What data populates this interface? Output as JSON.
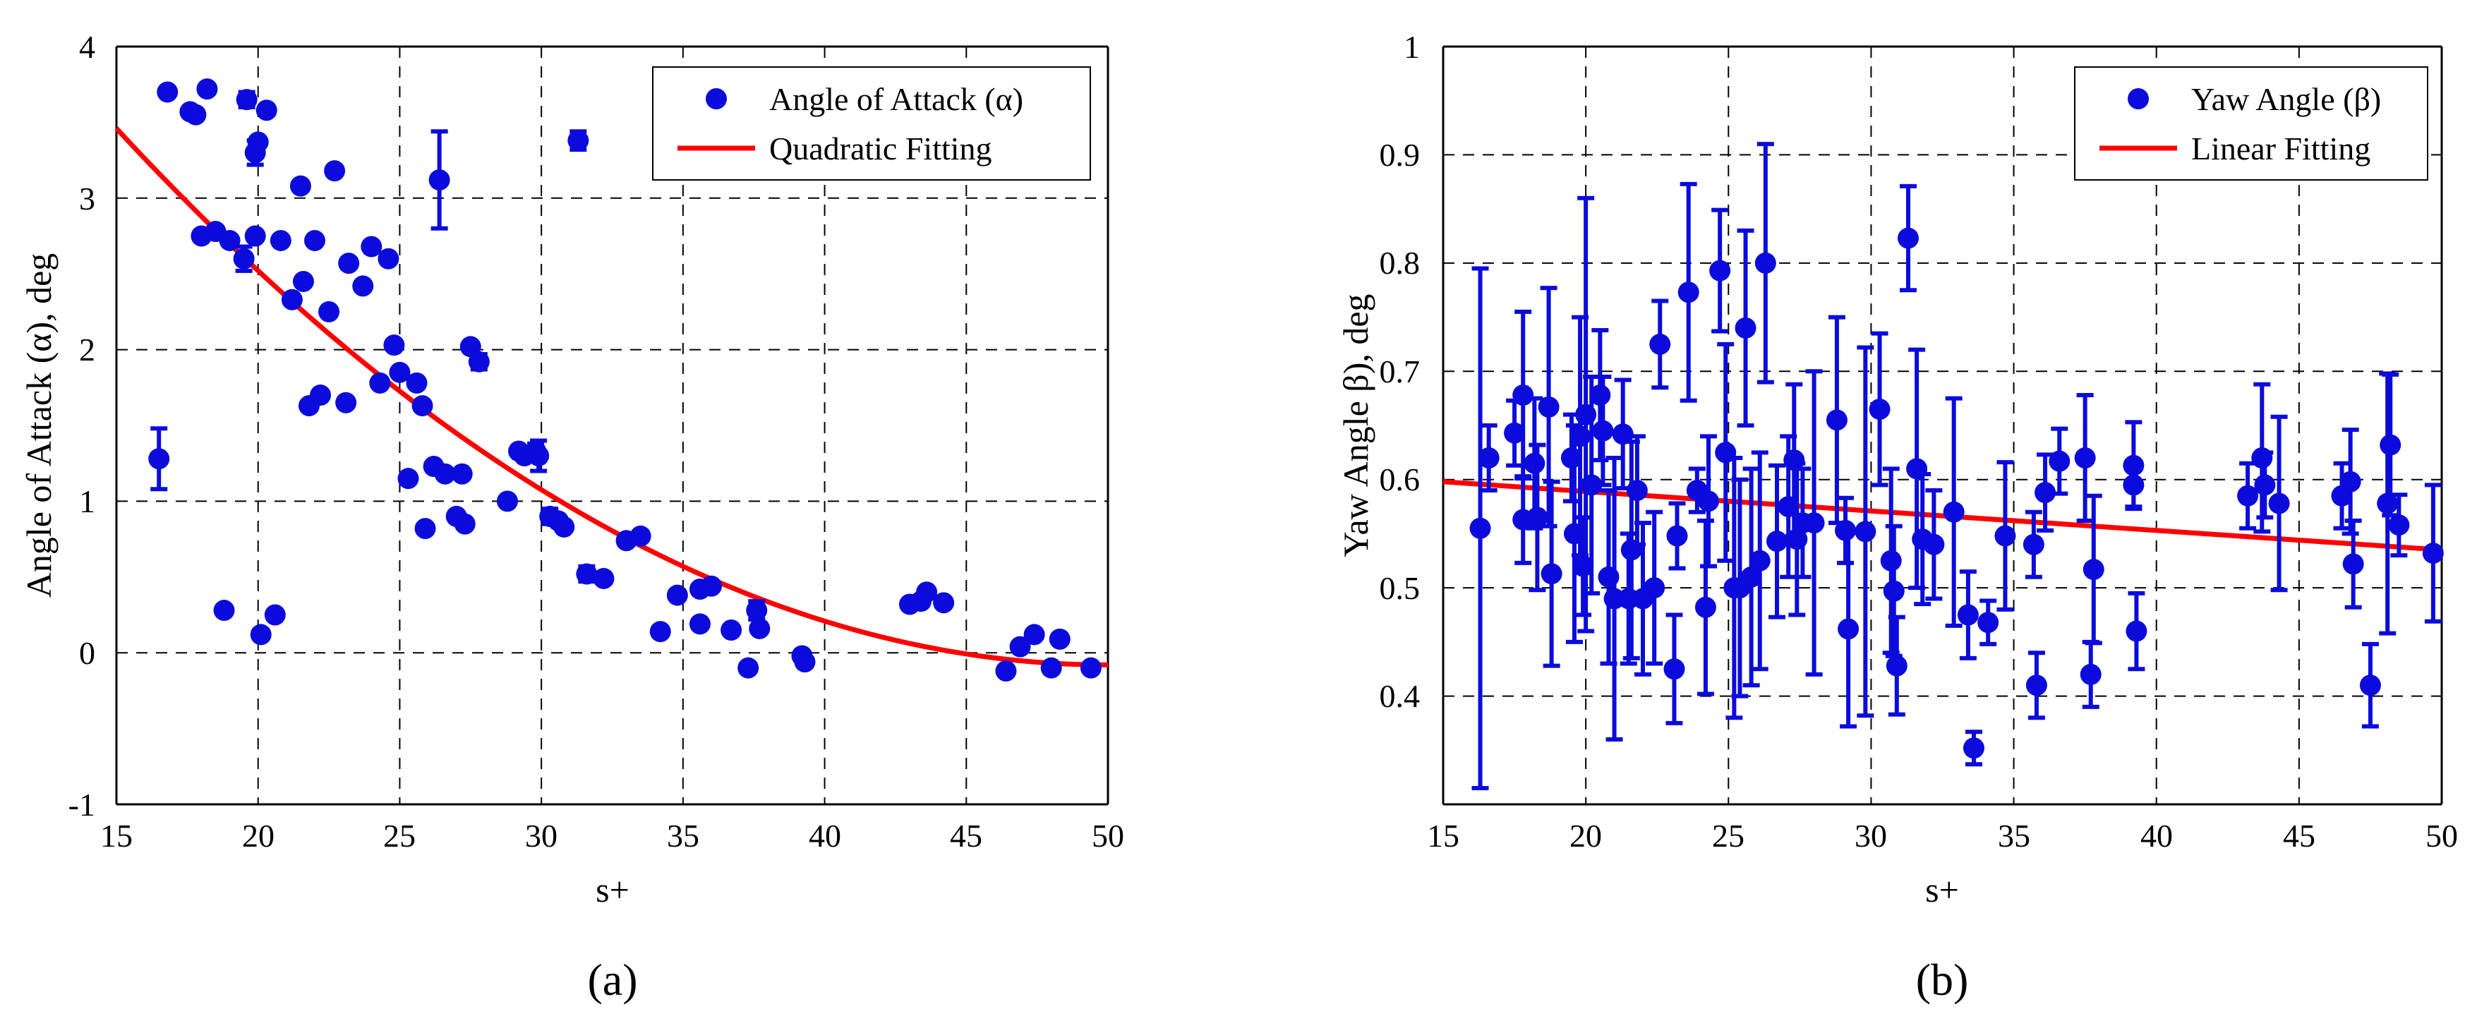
{
  "chart_data": [
    {
      "type": "scatter",
      "panel_label": "(a)",
      "xlabel": "s+",
      "ylabel": "Angle of Attack (α), deg",
      "xlim": [
        15,
        50
      ],
      "ylim": [
        -1,
        4
      ],
      "xticks": [
        "15",
        "20",
        "25",
        "30",
        "35",
        "40",
        "45",
        "50"
      ],
      "yticks": [
        "-1",
        "0",
        "1",
        "2",
        "3",
        "4"
      ],
      "grid": true,
      "legend_position": "top-right",
      "legend": [
        "Angle of Attack (α)",
        "Quadratic Fitting"
      ],
      "colors": {
        "points": "#0b0bdc",
        "fit": "#ff0000"
      },
      "series": [
        {
          "name": "Angle of Attack (α)",
          "points": [
            {
              "x": 16.5,
              "y": 1.28,
              "err": 0.2
            },
            {
              "x": 16.8,
              "y": 3.7,
              "err": 0
            },
            {
              "x": 17.6,
              "y": 3.57,
              "err": 0
            },
            {
              "x": 17.8,
              "y": 3.55,
              "err": 0
            },
            {
              "x": 18.0,
              "y": 2.75,
              "err": 0
            },
            {
              "x": 18.2,
              "y": 3.72,
              "err": 0
            },
            {
              "x": 18.5,
              "y": 2.78,
              "err": 0
            },
            {
              "x": 18.8,
              "y": 0.28,
              "err": 0
            },
            {
              "x": 19.0,
              "y": 2.72,
              "err": 0
            },
            {
              "x": 19.5,
              "y": 2.6,
              "err": 0.08
            },
            {
              "x": 19.6,
              "y": 3.65,
              "err": 0.05
            },
            {
              "x": 19.9,
              "y": 3.3,
              "err": 0.08
            },
            {
              "x": 20.0,
              "y": 3.37,
              "err": 0
            },
            {
              "x": 19.9,
              "y": 2.75,
              "err": 0
            },
            {
              "x": 20.1,
              "y": 0.12,
              "err": 0
            },
            {
              "x": 20.3,
              "y": 3.58,
              "err": 0
            },
            {
              "x": 20.6,
              "y": 0.25,
              "err": 0
            },
            {
              "x": 20.8,
              "y": 2.72,
              "err": 0
            },
            {
              "x": 21.2,
              "y": 2.33,
              "err": 0
            },
            {
              "x": 21.5,
              "y": 3.08,
              "err": 0
            },
            {
              "x": 21.6,
              "y": 2.45,
              "err": 0
            },
            {
              "x": 21.8,
              "y": 1.63,
              "err": 0
            },
            {
              "x": 22.0,
              "y": 2.72,
              "err": 0
            },
            {
              "x": 22.2,
              "y": 1.7,
              "err": 0
            },
            {
              "x": 22.5,
              "y": 2.25,
              "err": 0
            },
            {
              "x": 22.7,
              "y": 3.18,
              "err": 0
            },
            {
              "x": 23.1,
              "y": 1.65,
              "err": 0
            },
            {
              "x": 23.2,
              "y": 2.57,
              "err": 0
            },
            {
              "x": 23.7,
              "y": 2.42,
              "err": 0
            },
            {
              "x": 24.0,
              "y": 2.68,
              "err": 0
            },
            {
              "x": 24.3,
              "y": 1.78,
              "err": 0
            },
            {
              "x": 24.6,
              "y": 2.6,
              "err": 0
            },
            {
              "x": 24.8,
              "y": 2.03,
              "err": 0
            },
            {
              "x": 25.0,
              "y": 1.85,
              "err": 0
            },
            {
              "x": 25.3,
              "y": 1.15,
              "err": 0
            },
            {
              "x": 25.6,
              "y": 1.78,
              "err": 0
            },
            {
              "x": 25.8,
              "y": 1.63,
              "err": 0
            },
            {
              "x": 25.9,
              "y": 0.82,
              "err": 0
            },
            {
              "x": 26.2,
              "y": 1.23,
              "err": 0
            },
            {
              "x": 26.4,
              "y": 3.12,
              "err": 0.32
            },
            {
              "x": 26.6,
              "y": 1.18,
              "err": 0
            },
            {
              "x": 27.0,
              "y": 0.9,
              "err": 0
            },
            {
              "x": 27.2,
              "y": 1.18,
              "err": 0
            },
            {
              "x": 27.3,
              "y": 0.85,
              "err": 0
            },
            {
              "x": 27.5,
              "y": 2.02,
              "err": 0
            },
            {
              "x": 27.8,
              "y": 1.92,
              "err": 0.05
            },
            {
              "x": 28.8,
              "y": 1.0,
              "err": 0
            },
            {
              "x": 29.2,
              "y": 1.33,
              "err": 0
            },
            {
              "x": 29.4,
              "y": 1.3,
              "err": 0
            },
            {
              "x": 29.8,
              "y": 1.33,
              "err": 0.05
            },
            {
              "x": 29.9,
              "y": 1.3,
              "err": 0.1
            },
            {
              "x": 30.3,
              "y": 0.9,
              "err": 0.05
            },
            {
              "x": 30.6,
              "y": 0.87,
              "err": 0
            },
            {
              "x": 30.8,
              "y": 0.83,
              "err": 0
            },
            {
              "x": 31.3,
              "y": 3.38,
              "err": 0.06
            },
            {
              "x": 31.6,
              "y": 0.52,
              "err": 0.05
            },
            {
              "x": 32.2,
              "y": 0.49,
              "err": 0
            },
            {
              "x": 33.0,
              "y": 0.74,
              "err": 0
            },
            {
              "x": 33.5,
              "y": 0.77,
              "err": 0.03
            },
            {
              "x": 34.2,
              "y": 0.14,
              "err": 0
            },
            {
              "x": 34.8,
              "y": 0.38,
              "err": 0
            },
            {
              "x": 35.6,
              "y": 0.42,
              "err": 0
            },
            {
              "x": 35.6,
              "y": 0.19,
              "err": 0
            },
            {
              "x": 36.0,
              "y": 0.44,
              "err": 0
            },
            {
              "x": 36.7,
              "y": 0.15,
              "err": 0
            },
            {
              "x": 37.3,
              "y": -0.1,
              "err": 0.03
            },
            {
              "x": 37.6,
              "y": 0.28,
              "err": 0.06
            },
            {
              "x": 37.7,
              "y": 0.16,
              "err": 0
            },
            {
              "x": 39.2,
              "y": -0.02,
              "err": 0
            },
            {
              "x": 39.3,
              "y": -0.06,
              "err": 0
            },
            {
              "x": 43.0,
              "y": 0.32,
              "err": 0
            },
            {
              "x": 43.4,
              "y": 0.34,
              "err": 0
            },
            {
              "x": 43.6,
              "y": 0.4,
              "err": 0
            },
            {
              "x": 44.2,
              "y": 0.33,
              "err": 0
            },
            {
              "x": 46.4,
              "y": -0.12,
              "err": 0
            },
            {
              "x": 46.9,
              "y": 0.04,
              "err": 0
            },
            {
              "x": 47.4,
              "y": 0.12,
              "err": 0
            },
            {
              "x": 48.0,
              "y": -0.1,
              "err": 0
            },
            {
              "x": 48.3,
              "y": 0.09,
              "err": 0
            },
            {
              "x": 49.4,
              "y": -0.1,
              "err": 0
            }
          ]
        },
        {
          "name": "Quadratic Fitting",
          "fit": {
            "kind": "quadratic",
            "vertex_x": 50,
            "vertex_y": -0.08,
            "a": 0.00289,
            "x_from": 15,
            "x_to": 50
          }
        }
      ]
    },
    {
      "type": "scatter",
      "panel_label": "(b)",
      "xlabel": "s+",
      "ylabel": "Yaw Angle β), deg",
      "xlim": [
        15,
        50
      ],
      "ylim": [
        0.3,
        1
      ],
      "xticks": [
        "15",
        "20",
        "25",
        "30",
        "35",
        "40",
        "45",
        "50"
      ],
      "yticks": [
        "0.4",
        "0.5",
        "0.6",
        "0.7",
        "0.8",
        "0.9",
        "1"
      ],
      "grid": true,
      "legend_position": "top-right",
      "legend": [
        "Yaw Angle (β)",
        "Linear Fitting"
      ],
      "colors": {
        "points": "#0b0bdc",
        "fit": "#ff0000"
      },
      "series": [
        {
          "name": "Yaw Angle (β)",
          "points": [
            {
              "x": 16.3,
              "y": 0.555,
              "err": 0.24
            },
            {
              "x": 16.6,
              "y": 0.62,
              "err": 0.03
            },
            {
              "x": 17.5,
              "y": 0.643,
              "err": 0.03
            },
            {
              "x": 17.8,
              "y": 0.678,
              "err": 0.077
            },
            {
              "x": 17.8,
              "y": 0.563,
              "err": 0.04
            },
            {
              "x": 18.2,
              "y": 0.615,
              "err": 0.06
            },
            {
              "x": 18.3,
              "y": 0.565,
              "err": 0.067
            },
            {
              "x": 18.7,
              "y": 0.667,
              "err": 0.11
            },
            {
              "x": 18.8,
              "y": 0.513,
              "err": 0.085
            },
            {
              "x": 19.5,
              "y": 0.62,
              "err": 0.04
            },
            {
              "x": 19.6,
              "y": 0.55,
              "err": 0.1
            },
            {
              "x": 19.8,
              "y": 0.64,
              "err": 0.11
            },
            {
              "x": 19.9,
              "y": 0.52,
              "err": 0.045
            },
            {
              "x": 20.0,
              "y": 0.66,
              "err": 0.2
            },
            {
              "x": 20.2,
              "y": 0.595,
              "err": 0.1
            },
            {
              "x": 20.5,
              "y": 0.678,
              "err": 0.06
            },
            {
              "x": 20.6,
              "y": 0.645,
              "err": 0.05
            },
            {
              "x": 20.8,
              "y": 0.51,
              "err": 0.08
            },
            {
              "x": 21.0,
              "y": 0.49,
              "err": 0.13
            },
            {
              "x": 21.3,
              "y": 0.642,
              "err": 0.05
            },
            {
              "x": 21.5,
              "y": 0.49,
              "err": 0.06
            },
            {
              "x": 21.6,
              "y": 0.535,
              "err": 0.1
            },
            {
              "x": 21.8,
              "y": 0.59,
              "err": 0.05
            },
            {
              "x": 22.0,
              "y": 0.49,
              "err": 0.07
            },
            {
              "x": 22.4,
              "y": 0.5,
              "err": 0.07
            },
            {
              "x": 22.6,
              "y": 0.725,
              "err": 0.04
            },
            {
              "x": 23.1,
              "y": 0.425,
              "err": 0.05
            },
            {
              "x": 23.2,
              "y": 0.548,
              "err": 0.03
            },
            {
              "x": 23.6,
              "y": 0.773,
              "err": 0.1
            },
            {
              "x": 23.9,
              "y": 0.59,
              "err": 0.02
            },
            {
              "x": 24.2,
              "y": 0.482,
              "err": 0.08
            },
            {
              "x": 24.3,
              "y": 0.58,
              "err": 0.06
            },
            {
              "x": 24.7,
              "y": 0.793,
              "err": 0.056
            },
            {
              "x": 24.9,
              "y": 0.625,
              "err": 0.1
            },
            {
              "x": 25.2,
              "y": 0.5,
              "err": 0.12
            },
            {
              "x": 25.4,
              "y": 0.5,
              "err": 0.1
            },
            {
              "x": 25.6,
              "y": 0.74,
              "err": 0.09
            },
            {
              "x": 25.8,
              "y": 0.51,
              "err": 0.1
            },
            {
              "x": 26.1,
              "y": 0.525,
              "err": 0.1
            },
            {
              "x": 26.3,
              "y": 0.8,
              "err": 0.11
            },
            {
              "x": 26.7,
              "y": 0.543,
              "err": 0.07
            },
            {
              "x": 27.1,
              "y": 0.575,
              "err": 0.065
            },
            {
              "x": 27.3,
              "y": 0.618,
              "err": 0.07
            },
            {
              "x": 27.4,
              "y": 0.545,
              "err": 0.07
            },
            {
              "x": 27.6,
              "y": 0.56,
              "err": 0.05
            },
            {
              "x": 28.0,
              "y": 0.56,
              "err": 0.14
            },
            {
              "x": 28.8,
              "y": 0.655,
              "err": 0.095
            },
            {
              "x": 29.1,
              "y": 0.553,
              "err": 0.03
            },
            {
              "x": 29.2,
              "y": 0.462,
              "err": 0.09
            },
            {
              "x": 29.8,
              "y": 0.552,
              "err": 0.17
            },
            {
              "x": 30.3,
              "y": 0.665,
              "err": 0.07
            },
            {
              "x": 30.7,
              "y": 0.525,
              "err": 0.085
            },
            {
              "x": 30.8,
              "y": 0.497,
              "err": 0.06
            },
            {
              "x": 30.9,
              "y": 0.428,
              "err": 0.045
            },
            {
              "x": 31.3,
              "y": 0.823,
              "err": 0.048
            },
            {
              "x": 31.6,
              "y": 0.61,
              "err": 0.11
            },
            {
              "x": 31.8,
              "y": 0.545,
              "err": 0.06
            },
            {
              "x": 32.2,
              "y": 0.54,
              "err": 0.05
            },
            {
              "x": 32.9,
              "y": 0.57,
              "err": 0.105
            },
            {
              "x": 33.4,
              "y": 0.475,
              "err": 0.04
            },
            {
              "x": 33.6,
              "y": 0.352,
              "err": 0.015
            },
            {
              "x": 34.1,
              "y": 0.468,
              "err": 0.02
            },
            {
              "x": 34.7,
              "y": 0.548,
              "err": 0.068
            },
            {
              "x": 35.7,
              "y": 0.54,
              "err": 0.03
            },
            {
              "x": 35.8,
              "y": 0.41,
              "err": 0.03
            },
            {
              "x": 36.1,
              "y": 0.588,
              "err": 0.035
            },
            {
              "x": 36.6,
              "y": 0.617,
              "err": 0.03
            },
            {
              "x": 37.5,
              "y": 0.62,
              "err": 0.058
            },
            {
              "x": 37.7,
              "y": 0.42,
              "err": 0.03
            },
            {
              "x": 37.8,
              "y": 0.517,
              "err": 0.068
            },
            {
              "x": 39.2,
              "y": 0.613,
              "err": 0.04
            },
            {
              "x": 39.3,
              "y": 0.46,
              "err": 0.035
            },
            {
              "x": 39.2,
              "y": 0.595,
              "err": 0.02
            },
            {
              "x": 43.2,
              "y": 0.585,
              "err": 0.03
            },
            {
              "x": 43.7,
              "y": 0.62,
              "err": 0.068
            },
            {
              "x": 43.8,
              "y": 0.595,
              "err": 0.03
            },
            {
              "x": 44.3,
              "y": 0.578,
              "err": 0.08
            },
            {
              "x": 46.5,
              "y": 0.585,
              "err": 0.03
            },
            {
              "x": 46.8,
              "y": 0.598,
              "err": 0.048
            },
            {
              "x": 46.9,
              "y": 0.522,
              "err": 0.04
            },
            {
              "x": 47.5,
              "y": 0.41,
              "err": 0.038
            },
            {
              "x": 48.1,
              "y": 0.578,
              "err": 0.12
            },
            {
              "x": 48.2,
              "y": 0.632,
              "err": 0.065
            },
            {
              "x": 48.5,
              "y": 0.558,
              "err": 0.028
            },
            {
              "x": 49.7,
              "y": 0.532,
              "err": 0.063
            }
          ]
        },
        {
          "name": "Linear Fitting",
          "fit": {
            "kind": "linear",
            "x": [
              15,
              50
            ],
            "y": [
              0.598,
              0.535
            ]
          }
        }
      ]
    }
  ]
}
